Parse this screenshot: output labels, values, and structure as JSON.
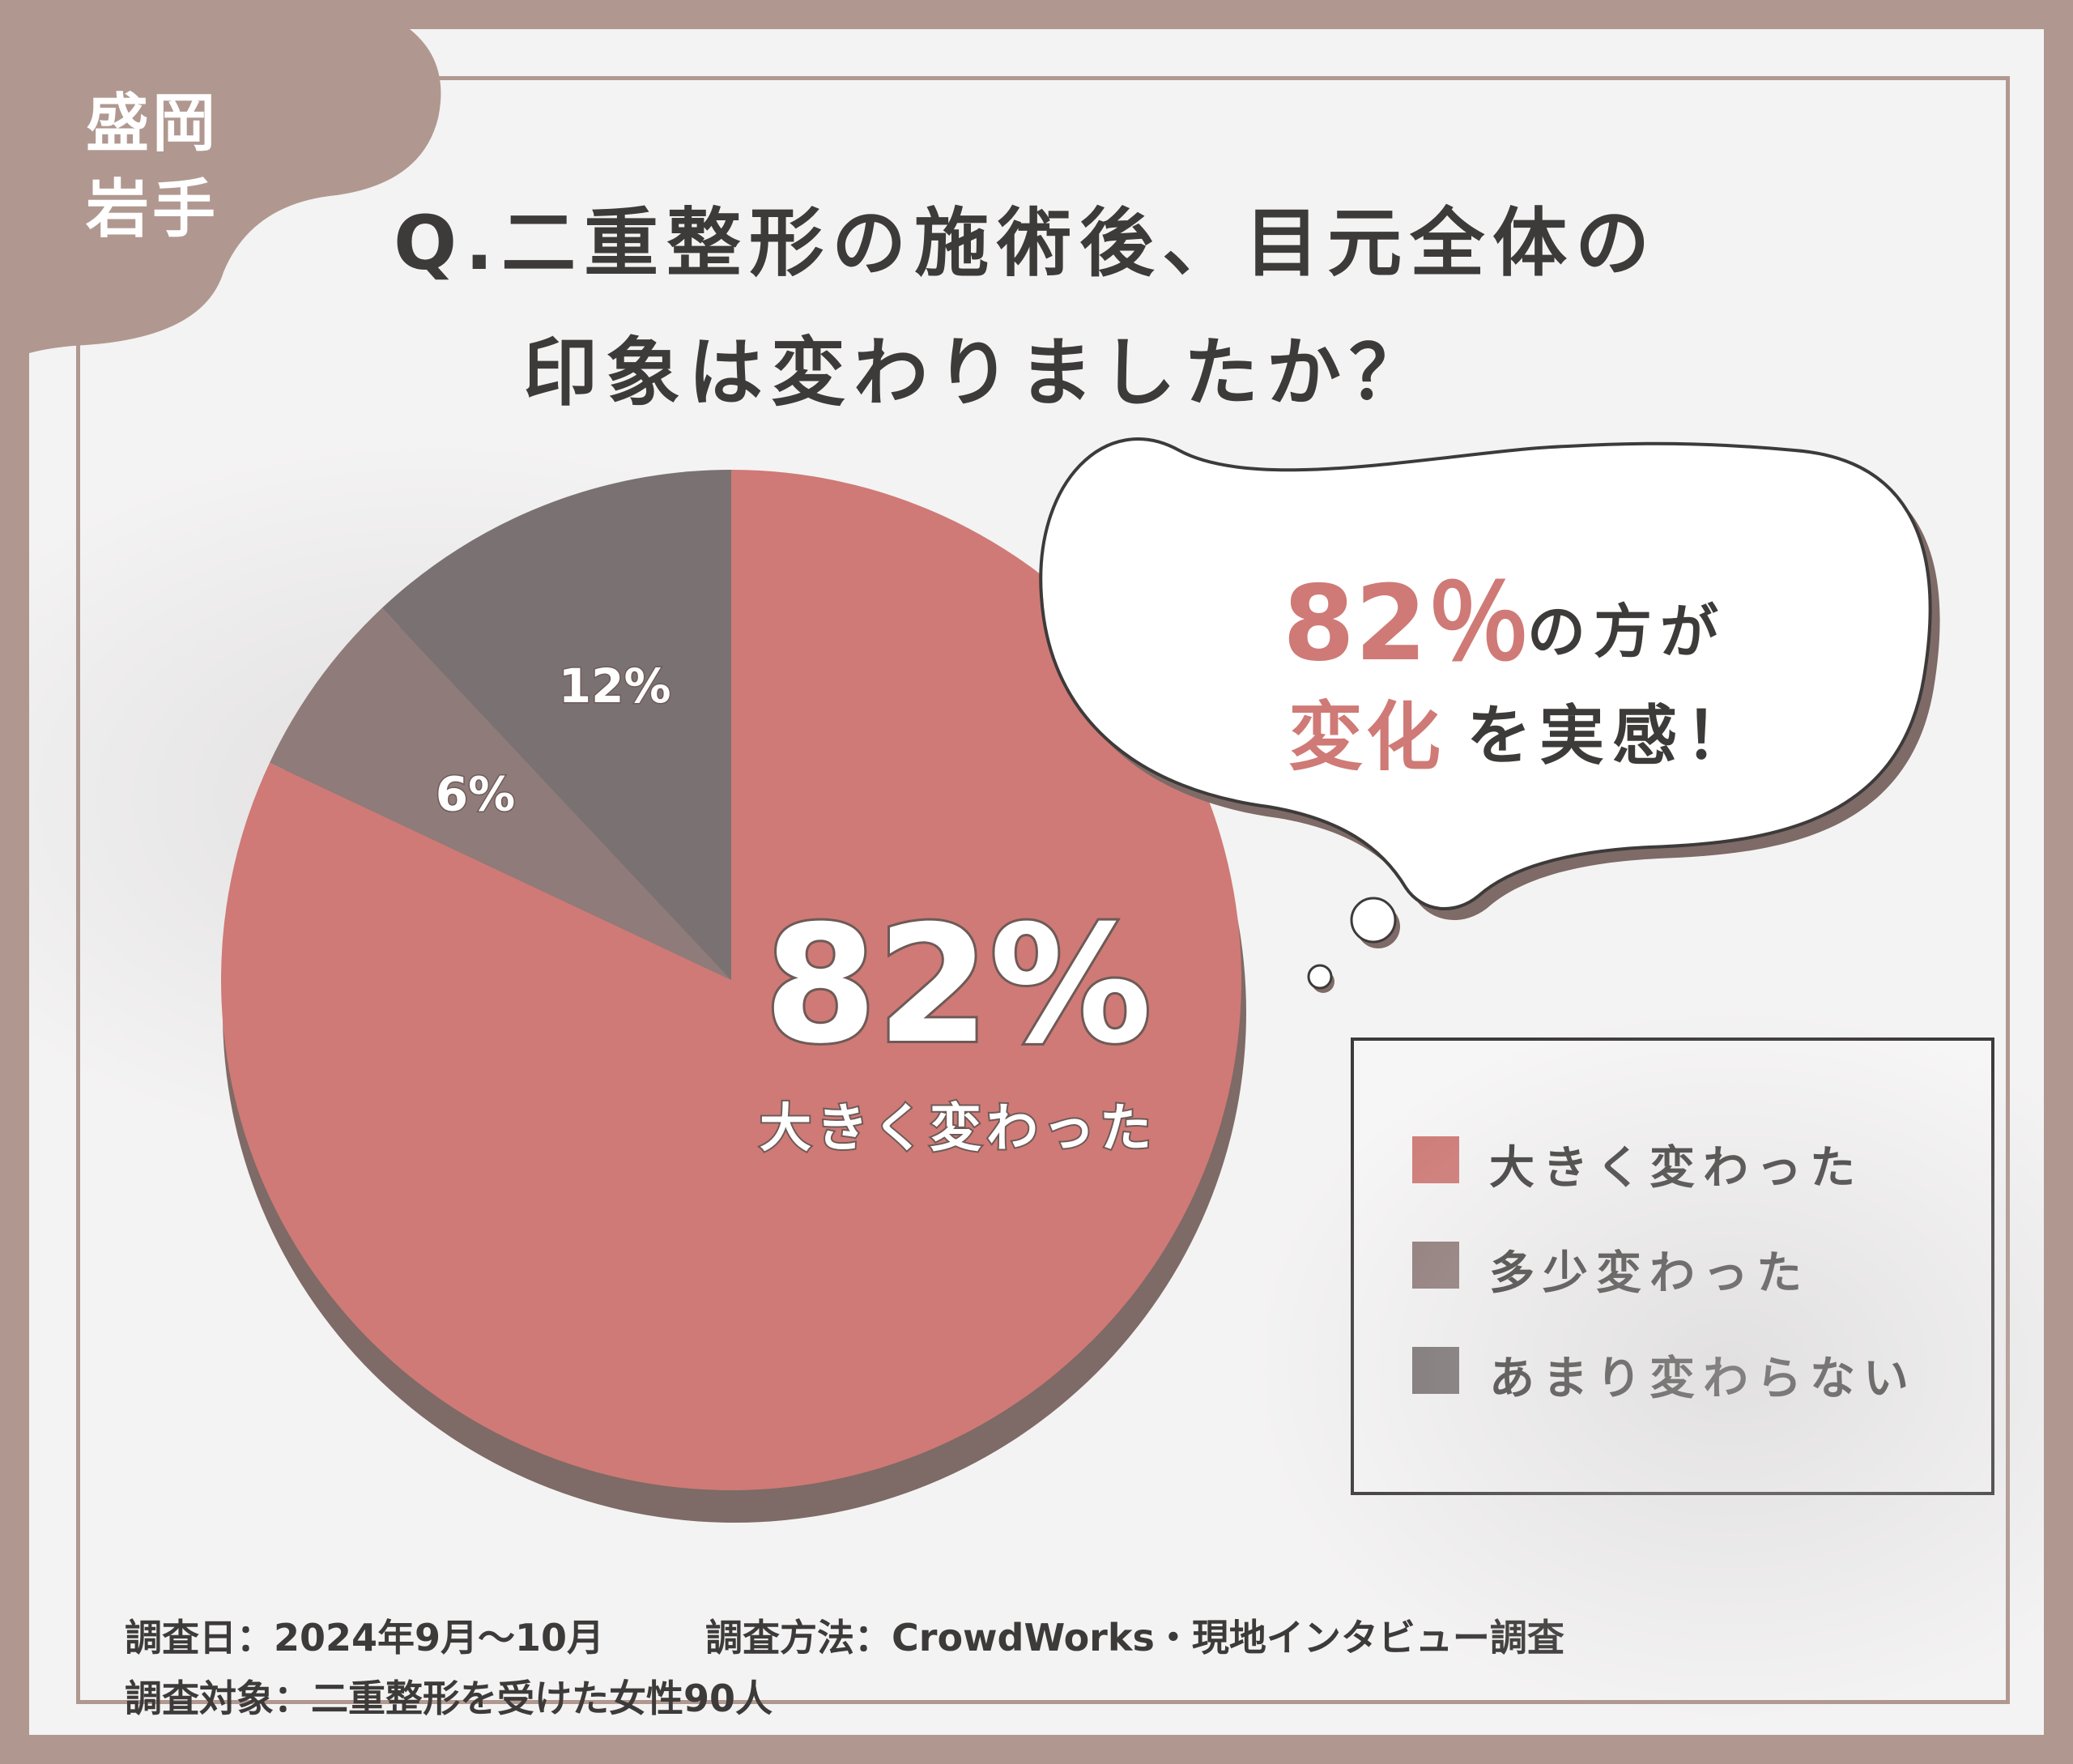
{
  "badge": {
    "line1": "盛岡",
    "line2": "岩手"
  },
  "title": {
    "line1": "Q.二重整形の施術後、目元全体の",
    "line2": "印象は変わりましたか？"
  },
  "bubble": {
    "percent": "82％",
    "percent_rest": "の方が",
    "change": "変化",
    "change_rest": "を実感！"
  },
  "chart_data": {
    "type": "pie",
    "categories": [
      "大きく変わった",
      "多少変わった",
      "あまり変わらない"
    ],
    "values": [
      82,
      6,
      12
    ],
    "data_labels": [
      "82%",
      "6%",
      "12%"
    ],
    "center_label_sub": "大きく変わった",
    "colors": [
      "#cf7a76",
      "#8f7b79",
      "#7a7272"
    ],
    "legend_position": "right"
  },
  "footer": {
    "date": "調査日：2024年9月～10月",
    "method": "調査方法：CrowdWorks・現地インタビュー調査",
    "target": "調査対象：二重整形を受けた女性90人"
  },
  "colors": {
    "frame": "#b09890",
    "accent": "#cf7a76",
    "text": "#3d3a3a",
    "shadow": "#7e6a66"
  }
}
